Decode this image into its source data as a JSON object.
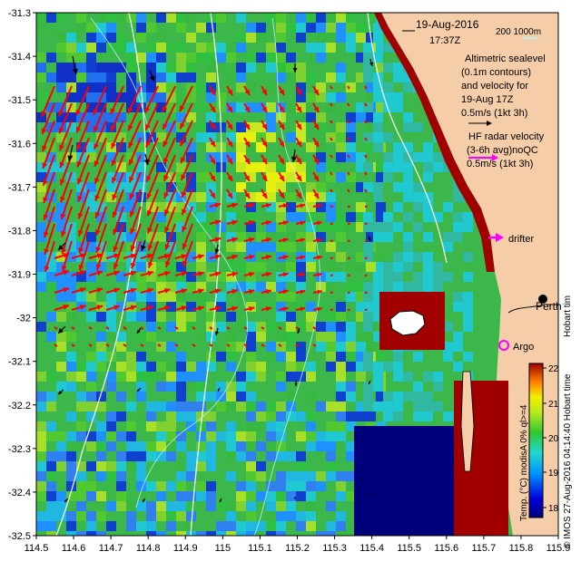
{
  "map": {
    "lon_range": [
      114.5,
      115.9
    ],
    "lat_range": [
      -32.5,
      -31.3
    ],
    "x_ticks": [
      "114.5",
      "114.6",
      "114.7",
      "114.8",
      "114.9",
      "115",
      "115.1",
      "115.2",
      "115.3",
      "115.4",
      "115.5",
      "115.6",
      "115.7",
      "115.8",
      "115.9"
    ],
    "y_ticks": [
      "-31.3",
      "-31.4",
      "-31.5",
      "-31.6",
      "-31.7",
      "-31.8",
      "-31.9",
      "-32",
      "-32.1",
      "-32.2",
      "-32.3",
      "-32.4",
      "-32.5"
    ]
  },
  "legend": {
    "date": "19-Aug-2016",
    "time": "17:37Z",
    "contour_depths": "200  1000m",
    "altimetry_lines": [
      "Altimetric sealevel",
      "(0.1m contours)",
      "and velocity for",
      "19-Aug 17Z",
      "0.5m/s (1kt 3h)"
    ],
    "hf_lines": [
      "HF radar velocity",
      "(3-6h avg)noQC",
      "0.5m/s (1kt 3h)"
    ],
    "drifter_label": "drifter",
    "argo_label": "Argo",
    "perth_label": "Perth",
    "hobart_fragment": "Hobart tim"
  },
  "colorbar": {
    "ticks": [
      "22",
      "21",
      "20",
      "19",
      "18"
    ],
    "title": "Temp. (°C) modisA 0% ql>=4",
    "credit": "© IMOS 27-Aug-2016 04:14:40 Hobart time"
  },
  "colors": {
    "land": "#f5cda8",
    "coast_fringe": "#a00000",
    "hf_arrow": "#ff0000",
    "alt_arrow": "#000000",
    "drifter": "#ff00ff",
    "argo": "#ff00ff",
    "contour_200": "#ffffff",
    "contour_1000": "#bfeeee"
  }
}
